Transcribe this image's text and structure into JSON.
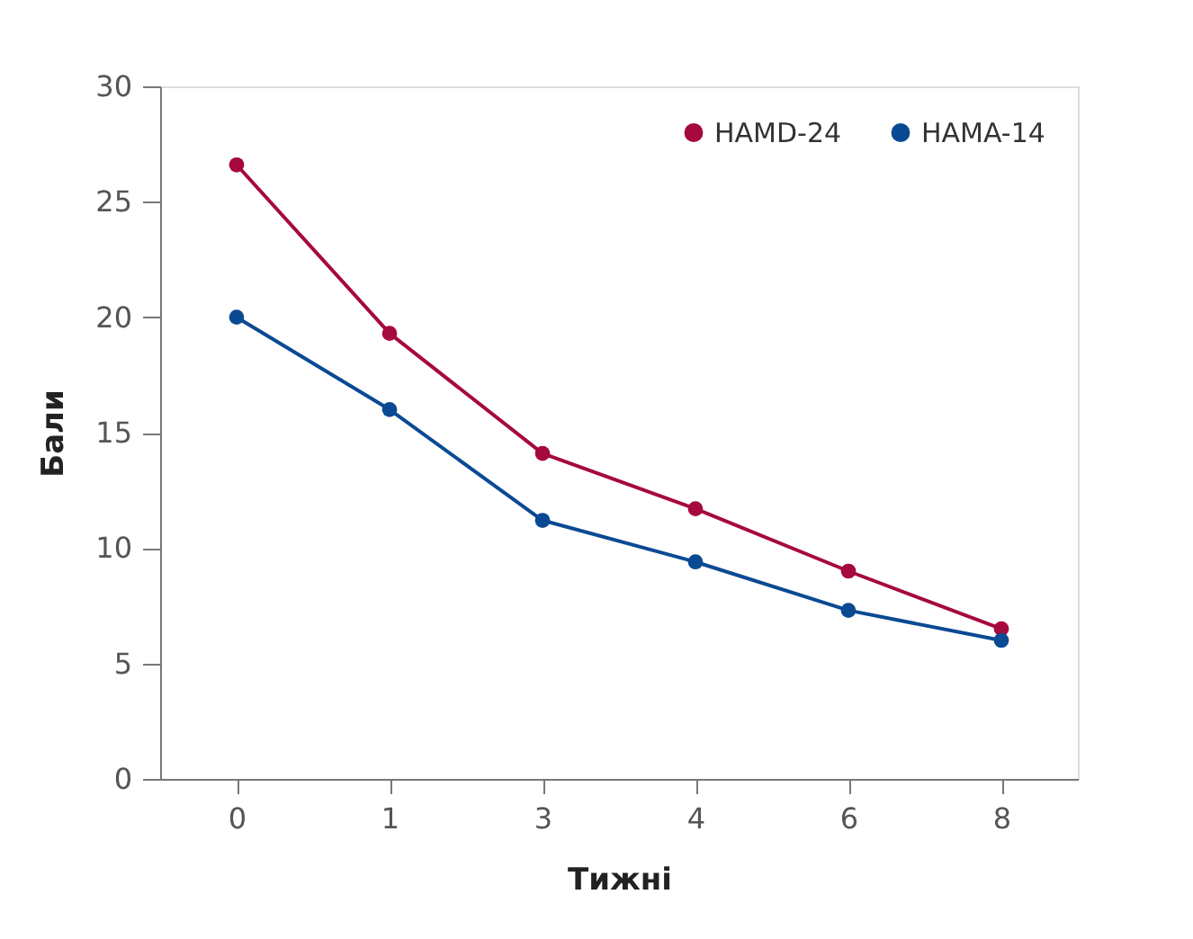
{
  "chart_data": {
    "type": "line",
    "xlabel": "Тижні",
    "ylabel": "Бали",
    "categories": [
      "0",
      "1",
      "3",
      "4",
      "6",
      "8"
    ],
    "series": [
      {
        "name": "HAMD-24",
        "color": "#a6093d",
        "values": [
          26.6,
          19.3,
          14.1,
          11.7,
          9.0,
          6.5
        ]
      },
      {
        "name": "HAMA-14",
        "color": "#0a4a93",
        "values": [
          20.0,
          16.0,
          11.2,
          9.4,
          7.3,
          6.0
        ]
      }
    ],
    "ylim": [
      0,
      30
    ],
    "yticks": [
      0,
      5,
      10,
      15,
      20,
      25,
      30
    ],
    "grid": false,
    "legend": "top right",
    "marker": "circle",
    "line_style": "solid"
  }
}
